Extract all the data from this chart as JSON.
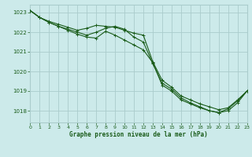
{
  "title": "Graphe pression niveau de la mer (hPa)",
  "bg_color": "#cceaea",
  "grid_color": "#aacccc",
  "line_color": "#1a5c1a",
  "xlim": [
    0,
    23
  ],
  "ylim": [
    1017.4,
    1023.4
  ],
  "yticks": [
    1018,
    1019,
    1020,
    1021,
    1022,
    1023
  ],
  "xticks": [
    0,
    1,
    2,
    3,
    4,
    5,
    6,
    7,
    8,
    9,
    10,
    11,
    12,
    13,
    14,
    15,
    16,
    17,
    18,
    19,
    20,
    21,
    22,
    23
  ],
  "series1_x": [
    0,
    1,
    2,
    3,
    4,
    5,
    6,
    7,
    8,
    9,
    10,
    11,
    12,
    13,
    14,
    15,
    16,
    17,
    18,
    19,
    20,
    21,
    22,
    23
  ],
  "series1_y": [
    1023.1,
    1022.75,
    1022.55,
    1022.4,
    1022.25,
    1022.1,
    1022.2,
    1022.35,
    1022.3,
    1022.25,
    1022.1,
    1021.95,
    1021.85,
    1020.5,
    1019.55,
    1019.2,
    1018.75,
    1018.55,
    1018.35,
    1018.2,
    1018.05,
    1018.15,
    1018.55,
    1019.0
  ],
  "series2_x": [
    0,
    1,
    2,
    3,
    4,
    5,
    6,
    7,
    8,
    9,
    10,
    11,
    12,
    13,
    14,
    15,
    16,
    17,
    18,
    19,
    20,
    21,
    22,
    23
  ],
  "series2_y": [
    1023.1,
    1022.75,
    1022.5,
    1022.3,
    1022.1,
    1021.9,
    1021.75,
    1021.7,
    1022.05,
    1021.85,
    1021.6,
    1021.35,
    1021.1,
    1020.45,
    1019.3,
    1019.0,
    1018.55,
    1018.35,
    1018.15,
    1018.0,
    1017.9,
    1018.1,
    1018.5,
    1019.0
  ],
  "series3_x": [
    0,
    1,
    2,
    3,
    4,
    5,
    6,
    7,
    8,
    9,
    10,
    11,
    12,
    13,
    14,
    15,
    16,
    17,
    18,
    19,
    20,
    21,
    22,
    23
  ],
  "series3_y": [
    1023.1,
    1022.75,
    1022.5,
    1022.3,
    1022.15,
    1022.0,
    1021.85,
    1022.0,
    1022.2,
    1022.3,
    1022.15,
    1021.75,
    1021.5,
    1020.4,
    1019.4,
    1019.1,
    1018.65,
    1018.4,
    1018.2,
    1018.0,
    1017.9,
    1018.0,
    1018.4,
    1019.0
  ]
}
